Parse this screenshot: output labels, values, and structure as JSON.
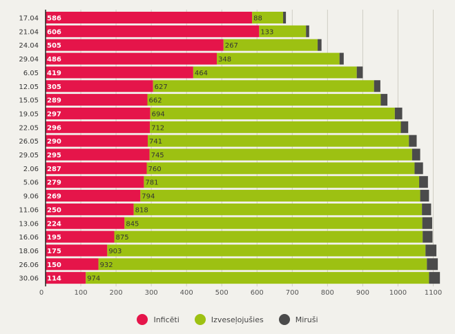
{
  "chart_data": {
    "type": "bar",
    "orientation": "horizontal",
    "stacked": true,
    "categories": [
      "17.04",
      "21.04",
      "24.04",
      "29.04",
      "6.05",
      "12.05",
      "15.05",
      "19.05",
      "22.05",
      "26.05",
      "29.05",
      "2.06",
      "5.06",
      "9.06",
      "11.06",
      "13.06",
      "16.06",
      "18.06",
      "26.06",
      "30.06"
    ],
    "series": [
      {
        "name": "Inficēti",
        "color": "#e5154a",
        "label_color": "#ffffff",
        "values": [
          586,
          606,
          505,
          486,
          419,
          305,
          289,
          297,
          296,
          290,
          295,
          287,
          279,
          269,
          250,
          224,
          195,
          175,
          150,
          114
        ]
      },
      {
        "name": "Izveseļojušies",
        "color": "#9dc112",
        "label_color": "#333333",
        "values": [
          88,
          133,
          267,
          348,
          464,
          627,
          662,
          694,
          712,
          741,
          745,
          760,
          781,
          794,
          818,
          845,
          875,
          903,
          932,
          974
        ]
      },
      {
        "name": "Miruši",
        "color": "#4b4b4b",
        "label_color": null,
        "values": [
          8,
          9,
          11,
          12,
          17,
          18,
          19,
          21,
          21,
          22,
          23,
          24,
          25,
          25,
          26,
          28,
          28,
          31,
          31,
          31
        ]
      }
    ],
    "xlim": [
      0,
      1150
    ],
    "xticks": [
      0,
      100,
      200,
      300,
      400,
      500,
      600,
      700,
      800,
      900,
      1000,
      1100
    ],
    "grid": "vertical",
    "legend": "bottom-center"
  }
}
